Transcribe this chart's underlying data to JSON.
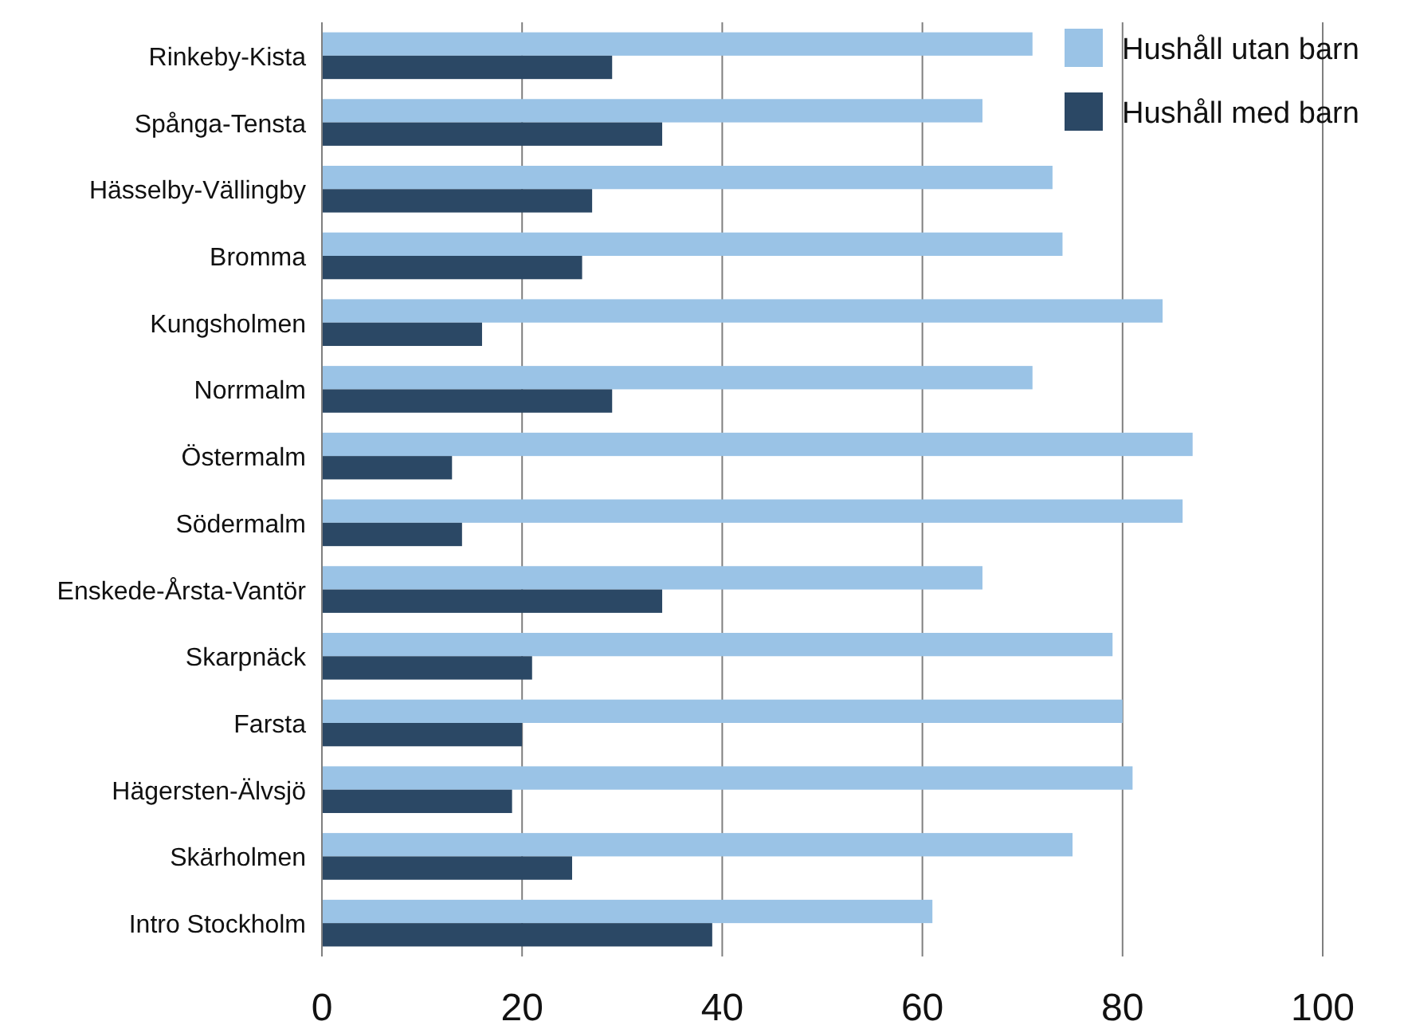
{
  "chart_data": {
    "type": "bar",
    "orientation": "horizontal",
    "categories": [
      "Rinkeby-Kista",
      "Spånga-Tensta",
      "Hässelby-Vällingby",
      "Bromma",
      "Kungsholmen",
      "Norrmalm",
      "Östermalm",
      "Södermalm",
      "Enskede-Årsta-Vantör",
      "Skarpnäck",
      "Farsta",
      "Hägersten-Älvsjö",
      "Skärholmen",
      "Intro Stockholm"
    ],
    "series": [
      {
        "name": "Hushåll utan barn",
        "color": "#9ac3e6",
        "values": [
          71,
          66,
          73,
          74,
          84,
          71,
          87,
          86,
          66,
          79,
          80,
          81,
          75,
          61
        ]
      },
      {
        "name": "Hushåll med barn",
        "color": "#2b4865",
        "values": [
          29,
          34,
          27,
          26,
          16,
          29,
          13,
          14,
          34,
          21,
          20,
          19,
          25,
          39
        ]
      }
    ],
    "xlim": [
      0,
      100
    ],
    "xticks": [
      0,
      20,
      40,
      60,
      80,
      100
    ],
    "grid": "x",
    "legend": "top right"
  }
}
